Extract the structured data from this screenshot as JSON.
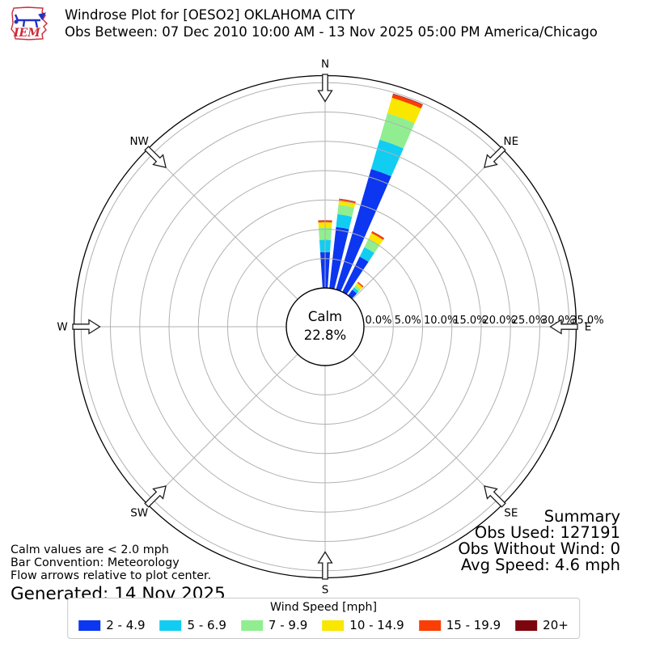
{
  "header": {
    "logo_text": "IEM",
    "title": "Windrose Plot for [OESO2] OKLAHOMA CITY",
    "subtitle": "Obs Between: 07 Dec 2010 10:00 AM - 13 Nov 2025 05:00 PM America/Chicago"
  },
  "chart_data": {
    "type": "bar",
    "subtype": "windrose-polar",
    "station": "[OESO2] OKLAHOMA CITY",
    "calm": {
      "label": "Calm",
      "percent": "22.8%"
    },
    "compass_labels": [
      "N",
      "NE",
      "E",
      "SE",
      "S",
      "SW",
      "W",
      "NW"
    ],
    "radial_ticks": [
      {
        "value": 0,
        "label": "0.0%"
      },
      {
        "value": 5,
        "label": "5.0%"
      },
      {
        "value": 10,
        "label": "10.0%"
      },
      {
        "value": 15,
        "label": "15.0%"
      },
      {
        "value": 20,
        "label": "20.0%"
      },
      {
        "value": 25,
        "label": "25.0%"
      },
      {
        "value": 30,
        "label": "30.0%"
      },
      {
        "value": 35,
        "label": "35.0%"
      }
    ],
    "r_axis_max_pct": 36.2,
    "grid": true,
    "bar_width_deg": 7.5,
    "speed_bins": [
      {
        "label": "2 - 4.9",
        "color": "#0c36f0"
      },
      {
        "label": "5 - 6.9",
        "color": "#12cdf2"
      },
      {
        "label": "7 - 9.9",
        "color": "#90ee90"
      },
      {
        "label": "10 - 14.9",
        "color": "#f9e700"
      },
      {
        "label": "15 - 19.9",
        "color": "#fb3e04"
      },
      {
        "label": "20+",
        "color": "#7d060e"
      }
    ],
    "series": [
      {
        "direction_deg": 0,
        "segments_pct": [
          6.1,
          2.1,
          2.1,
          0.9,
          0.3,
          0.05
        ]
      },
      {
        "direction_deg": 10,
        "segments_pct": [
          10.5,
          2.2,
          1.6,
          0.75,
          0.25,
          0.05
        ]
      },
      {
        "direction_deg": 20,
        "segments_pct": [
          21.4,
          5.2,
          4.7,
          2.75,
          0.65,
          0.1
        ]
      },
      {
        "direction_deg": 30,
        "segments_pct": [
          6.7,
          1.8,
          1.6,
          1.1,
          0.3,
          0.05
        ]
      },
      {
        "direction_deg": 40,
        "segments_pct": [
          1.2,
          0.5,
          0.45,
          0.5,
          0.2,
          0.03
        ]
      }
    ]
  },
  "legend": {
    "title": "Wind Speed [mph]"
  },
  "summary": {
    "heading": "Summary",
    "lines": [
      "Obs Used: 127191",
      "Obs Without Wind: 0",
      "Avg Speed: 4.6 mph"
    ]
  },
  "footnotes": {
    "lines": [
      "Calm values are < 2.0 mph",
      "Bar Convention: Meteorology",
      "Flow arrows relative to plot center."
    ],
    "generated": "Generated: 14 Nov 2025"
  }
}
